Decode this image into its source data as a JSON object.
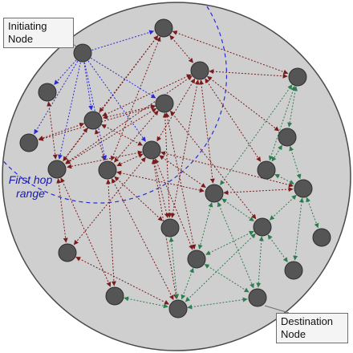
{
  "labels": {
    "initiating": "Initiating\nNode",
    "destination": "Destination\nNode",
    "first_hop": "First hop\nrange"
  },
  "colors": {
    "background_disc": "#cfcfcf",
    "node_fill": "#555555",
    "first_hop_edge": "#2a2ad6",
    "flood_edge": "#7a1c1c",
    "return_edge": "#2e7d4f",
    "range_arc": "#2a2ad6"
  },
  "icons": [
    "network-node-icon"
  ]
}
